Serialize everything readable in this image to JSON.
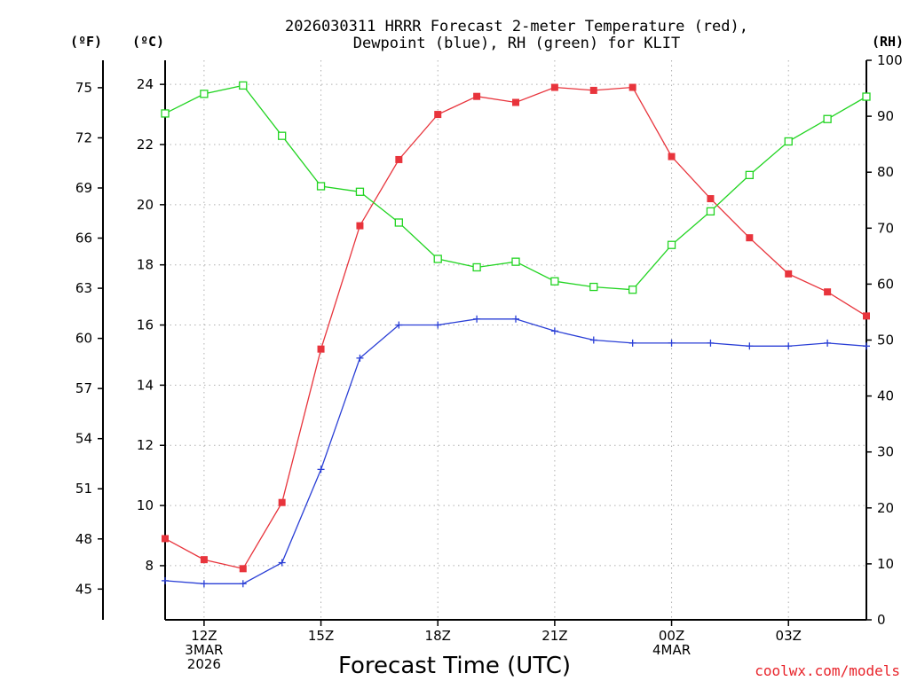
{
  "chart_data": {
    "type": "line",
    "title": "2026030311 HRRR Forecast 2-meter Temperature (red),",
    "subtitle": "Dewpoint (blue), RH (green) for KLIT",
    "xlabel": "Forecast Time (UTC)",
    "credit": "coolwx.com/models",
    "units": {
      "fahrenheit": "(ºF)",
      "celsius": "(ºC)",
      "rh": "(RH)"
    },
    "x": [
      11,
      12,
      13,
      14,
      15,
      16,
      17,
      18,
      19,
      20,
      21,
      22,
      23,
      24,
      25,
      26,
      27,
      28,
      29
    ],
    "xlim": [
      11,
      29
    ],
    "x_ticks": [
      {
        "x": 12,
        "lines": [
          "12Z",
          "3MAR",
          "2026"
        ]
      },
      {
        "x": 15,
        "lines": [
          "15Z"
        ]
      },
      {
        "x": 18,
        "lines": [
          "18Z"
        ]
      },
      {
        "x": 21,
        "lines": [
          "21Z"
        ]
      },
      {
        "x": 24,
        "lines": [
          "00Z",
          "4MAR"
        ]
      },
      {
        "x": 27,
        "lines": [
          "03Z"
        ]
      }
    ],
    "ylim_c": [
      6.2,
      24.8
    ],
    "ylim_rh": [
      0,
      100
    ],
    "celsius_ticks": [
      "8",
      "10",
      "12",
      "14",
      "16",
      "18",
      "20",
      "22",
      "24"
    ],
    "fahrenheit_ticks": [
      "45",
      "48",
      "51",
      "54",
      "57",
      "60",
      "63",
      "66",
      "69",
      "72",
      "75"
    ],
    "rh_ticks": [
      "0",
      "10",
      "20",
      "30",
      "40",
      "50",
      "60",
      "70",
      "80",
      "90",
      "100"
    ],
    "series": [
      {
        "name": "Temperature",
        "axis": "celsius",
        "color": "#e8343c",
        "marker": "filled-square",
        "values": [
          8.9,
          8.2,
          7.9,
          10.1,
          15.2,
          19.3,
          21.5,
          23.0,
          23.6,
          23.4,
          23.9,
          23.8,
          23.9,
          21.6,
          20.2,
          18.9,
          17.7,
          17.1,
          16.3
        ]
      },
      {
        "name": "Dewpoint",
        "axis": "celsius",
        "color": "#2a3fd6",
        "marker": "plus",
        "values": [
          7.5,
          7.4,
          7.4,
          8.1,
          11.2,
          14.9,
          16.0,
          16.0,
          16.2,
          16.2,
          15.8,
          15.5,
          15.4,
          15.4,
          15.4,
          15.3,
          15.3,
          15.4,
          15.3
        ]
      },
      {
        "name": "RH",
        "axis": "rh",
        "color": "#22d422",
        "marker": "open-square",
        "values": [
          90.5,
          94,
          95.5,
          86.5,
          77.5,
          76.5,
          71,
          64.5,
          63,
          64,
          60.5,
          59.5,
          59,
          67,
          73,
          79.5,
          85.5,
          89.5,
          93.5
        ]
      }
    ]
  }
}
